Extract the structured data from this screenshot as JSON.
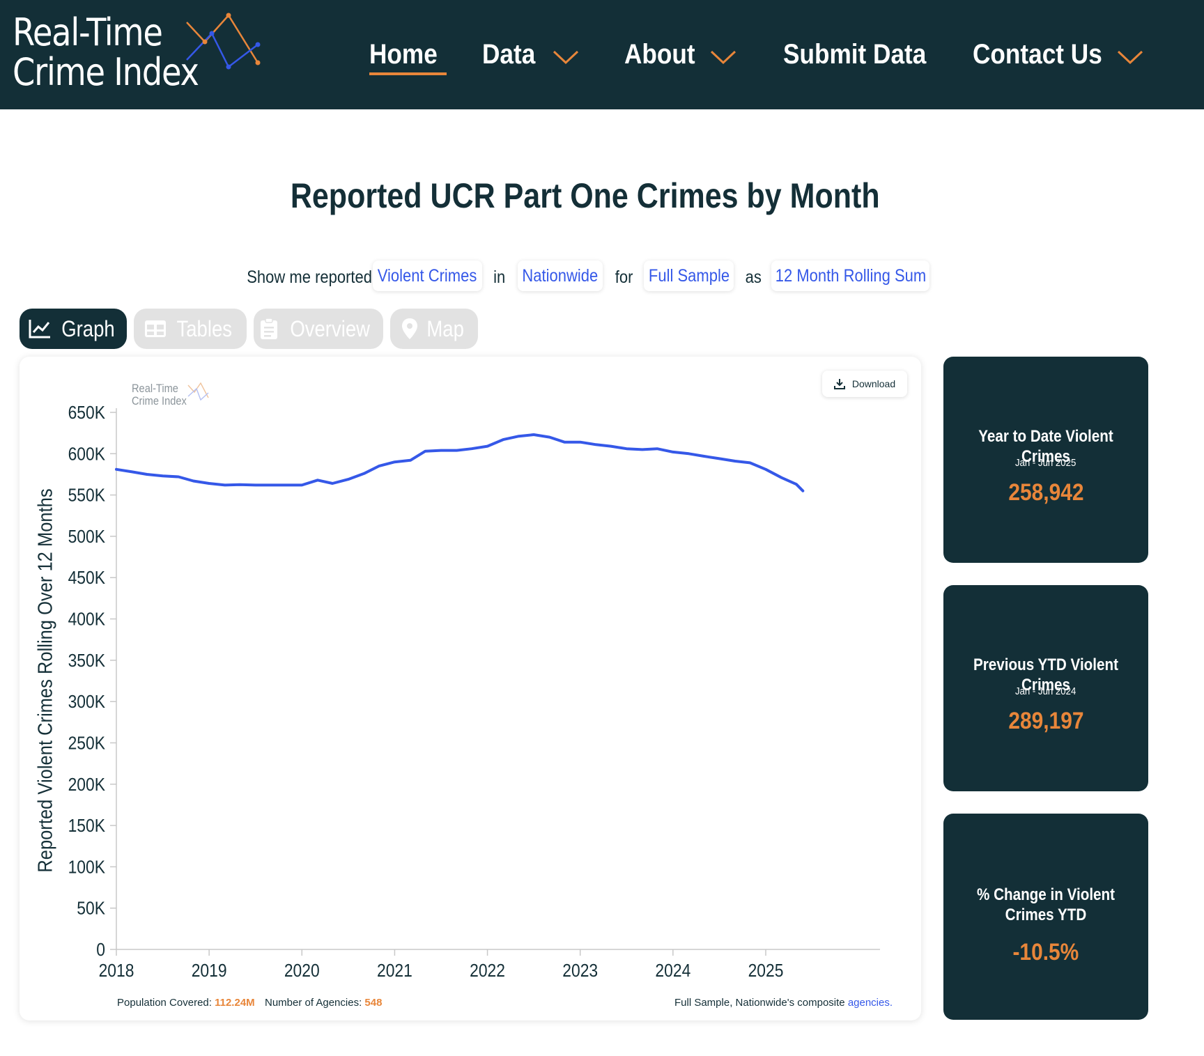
{
  "header": {
    "logo_line1": "Real-Time",
    "logo_line2": "Crime Index",
    "nav": [
      {
        "label": "Home",
        "active": true
      },
      {
        "label": "Data",
        "dropdown": true
      },
      {
        "label": "About",
        "dropdown": true
      },
      {
        "label": "Submit Data"
      },
      {
        "label": "Contact Us",
        "dropdown": true
      }
    ]
  },
  "page_title": "Reported UCR Part One Crimes by Month",
  "selector": {
    "prefix": "Show me reported",
    "crime_type": "Violent Crimes",
    "word_in": "in",
    "region": "Nationwide",
    "word_for": "for",
    "sample": "Full Sample",
    "word_as": "as",
    "measure": "12 Month Rolling Sum"
  },
  "tabs": [
    {
      "label": "Graph",
      "icon": "chart-line-icon",
      "active": true
    },
    {
      "label": "Tables",
      "icon": "table-icon"
    },
    {
      "label": "Overview",
      "icon": "clipboard-icon"
    },
    {
      "label": "Map",
      "icon": "map-pin-icon"
    }
  ],
  "download_label": "Download",
  "watermark": {
    "line1": "Real-Time",
    "line2": "Crime Index"
  },
  "footer": {
    "population_label": "Population Covered:",
    "population_value": "112.24M",
    "agencies_label": "Number of Agencies:",
    "agencies_value": "548",
    "composite_text": "Full Sample, Nationwide's composite",
    "composite_link": "agencies."
  },
  "stats": [
    {
      "title": "Year to Date Violent Crimes",
      "sub": "Jan - Jun 2025",
      "value": "258,942"
    },
    {
      "title": "Previous YTD Violent Crimes",
      "sub": "Jan - Jun 2024",
      "value": "289,197"
    },
    {
      "title": "% Change in Violent Crimes YTD",
      "sub": "",
      "value": "-10.5%"
    }
  ],
  "colors": {
    "navy": "#132f37",
    "accent": "#e8863a",
    "line": "#3558e8"
  },
  "chart_data": {
    "type": "line",
    "title": "",
    "xlabel": "",
    "ylabel": "Reported Violent Crimes Rolling Over 12 Months",
    "xlim": [
      2018,
      2025.4
    ],
    "ylim": [
      0,
      650000
    ],
    "x_ticks": [
      "2018",
      "2019",
      "2020",
      "2021",
      "2022",
      "2023",
      "2024",
      "2025"
    ],
    "y_ticks": [
      "0",
      "50K",
      "100K",
      "150K",
      "200K",
      "250K",
      "300K",
      "350K",
      "400K",
      "450K",
      "500K",
      "550K",
      "600K",
      "650K"
    ],
    "grid": false,
    "series": [
      {
        "x": [
          2018.0,
          2018.17,
          2018.33,
          2018.5,
          2018.67,
          2018.83,
          2019.0,
          2019.17,
          2019.33,
          2019.5,
          2019.67,
          2019.83,
          2020.0,
          2020.17,
          2020.33,
          2020.5,
          2020.67,
          2020.83,
          2021.0,
          2021.17,
          2021.33,
          2021.5,
          2021.67,
          2021.83,
          2022.0,
          2022.17,
          2022.33,
          2022.5,
          2022.67,
          2022.83,
          2023.0,
          2023.17,
          2023.33,
          2023.5,
          2023.67,
          2023.83,
          2024.0,
          2024.17,
          2024.33,
          2024.5,
          2024.67,
          2024.83,
          2025.0,
          2025.17,
          2025.33,
          2025.4
        ],
        "y": [
          581000,
          578000,
          575000,
          573000,
          572000,
          567000,
          564000,
          562000,
          562500,
          562000,
          562000,
          562000,
          562000,
          568000,
          564000,
          569000,
          576000,
          585000,
          590000,
          592000,
          603000,
          604000,
          604000,
          606000,
          609000,
          617000,
          621000,
          623000,
          620000,
          614000,
          614000,
          611000,
          609000,
          606000,
          605000,
          606000,
          602000,
          600000,
          597000,
          594000,
          591000,
          589000,
          581000,
          571000,
          563000,
          555000
        ]
      }
    ]
  }
}
